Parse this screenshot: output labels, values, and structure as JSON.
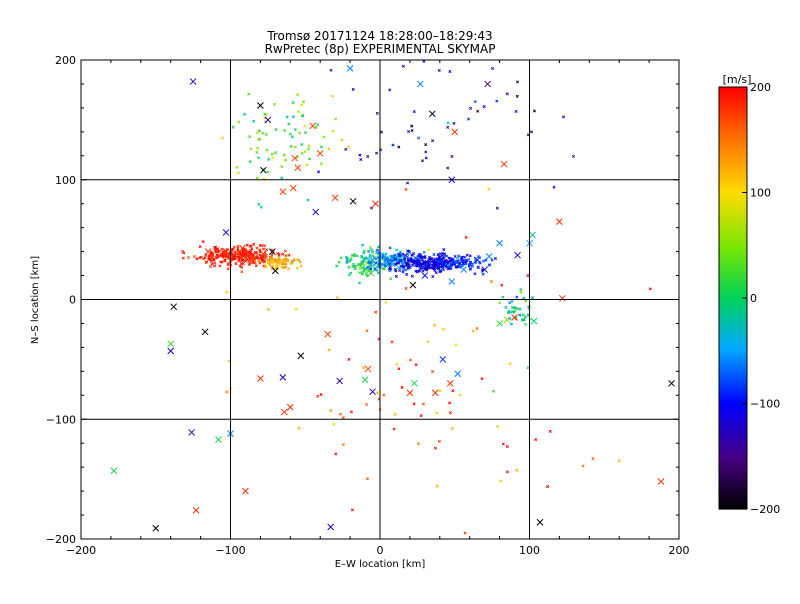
{
  "chart_data": {
    "type": "scatter",
    "title": "Tromsø 20171124 18:28:00–18:29:43",
    "subtitle": "RwPretec (8p) EXPERIMENTAL SKYMAP",
    "xlabel": "E–W location [km]",
    "ylabel": "N–S location [km]",
    "xlim": [
      -200,
      200
    ],
    "ylim": [
      -200,
      200
    ],
    "xticks": [
      -200,
      -100,
      0,
      100,
      200
    ],
    "yticks": [
      -200,
      -100,
      0,
      100,
      200
    ],
    "grid": true,
    "colorbar": {
      "label": "[m/s]",
      "range": [
        -200,
        200
      ],
      "ticks": [
        200,
        100,
        0,
        -100,
        -200
      ],
      "placement": "right"
    },
    "clusters": [
      {
        "name": "red-west-cluster",
        "cx": -95,
        "cy": 36,
        "sx": 14,
        "sy": 4,
        "n": 260,
        "v": 190,
        "vs": 12
      },
      {
        "name": "orange-west-cluster",
        "cx": -68,
        "cy": 31,
        "sx": 6,
        "sy": 3,
        "n": 70,
        "v": 120,
        "vs": 20
      },
      {
        "name": "green-center-cluster",
        "cx": -8,
        "cy": 30,
        "sx": 8,
        "sy": 6,
        "n": 90,
        "v": 10,
        "vs": 20
      },
      {
        "name": "cyan-center-cluster",
        "cx": 8,
        "cy": 33,
        "sx": 10,
        "sy": 4,
        "n": 140,
        "v": -55,
        "vs": 15
      },
      {
        "name": "blue-east-cluster",
        "cx": 35,
        "cy": 30,
        "sx": 14,
        "sy": 4,
        "n": 260,
        "v": -110,
        "vs": 15
      },
      {
        "name": "lightblue-east-cluster",
        "cx": 55,
        "cy": 30,
        "sx": 10,
        "sy": 3,
        "n": 60,
        "v": -80,
        "vs": 12
      },
      {
        "name": "green-ne-cluster",
        "cx": -65,
        "cy": 135,
        "sx": 18,
        "sy": 20,
        "n": 80,
        "v": 40,
        "vs": 35
      },
      {
        "name": "green-se-cluster",
        "cx": 92,
        "cy": -10,
        "sx": 6,
        "sy": 6,
        "n": 40,
        "v": 0,
        "vs": 40
      },
      {
        "name": "blue-north-scatter",
        "cx": 45,
        "cy": 150,
        "sx": 40,
        "sy": 35,
        "n": 60,
        "v": -130,
        "vs": 40
      },
      {
        "name": "red-south-scatter",
        "cx": 20,
        "cy": -70,
        "sx": 60,
        "sy": 55,
        "n": 90,
        "v": 150,
        "vs": 60
      }
    ],
    "x_markers": [
      {
        "x": -125,
        "y": 182,
        "v": -120
      },
      {
        "x": -80,
        "y": 162,
        "v": -200
      },
      {
        "x": -75,
        "y": 150,
        "v": -130
      },
      {
        "x": -78,
        "y": 108,
        "v": -200
      },
      {
        "x": -45,
        "y": 145,
        "v": 170
      },
      {
        "x": -55,
        "y": 110,
        "v": 170
      },
      {
        "x": -40,
        "y": 122,
        "v": 170
      },
      {
        "x": -30,
        "y": 85,
        "v": 170
      },
      {
        "x": -18,
        "y": 82,
        "v": -200
      },
      {
        "x": -3,
        "y": 80,
        "v": 190
      },
      {
        "x": -43,
        "y": 73,
        "v": -110
      },
      {
        "x": -58,
        "y": 93,
        "v": 170
      },
      {
        "x": -65,
        "y": 90,
        "v": 170
      },
      {
        "x": -57,
        "y": 118,
        "v": 170
      },
      {
        "x": -70,
        "y": 24,
        "v": -200
      },
      {
        "x": -72,
        "y": 40,
        "v": -200
      },
      {
        "x": -103,
        "y": 56,
        "v": -110
      },
      {
        "x": -103,
        "y": 40,
        "v": 180
      },
      {
        "x": -115,
        "y": 40,
        "v": 180
      },
      {
        "x": -87,
        "y": 36,
        "v": 180
      },
      {
        "x": -92,
        "y": 43,
        "v": 180
      },
      {
        "x": -78,
        "y": 38,
        "v": 180
      },
      {
        "x": -138,
        "y": -6,
        "v": -200
      },
      {
        "x": -117,
        "y": -27,
        "v": -200
      },
      {
        "x": -140,
        "y": -37,
        "v": 20
      },
      {
        "x": -140,
        "y": -43,
        "v": -120
      },
      {
        "x": -53,
        "y": -47,
        "v": -200
      },
      {
        "x": -35,
        "y": -29,
        "v": 170
      },
      {
        "x": -27,
        "y": -68,
        "v": -120
      },
      {
        "x": -8,
        "y": -58,
        "v": 170
      },
      {
        "x": -5,
        "y": -77,
        "v": -120
      },
      {
        "x": -10,
        "y": -67,
        "v": 10
      },
      {
        "x": -100,
        "y": -112,
        "v": -60
      },
      {
        "x": -108,
        "y": -117,
        "v": 10
      },
      {
        "x": -126,
        "y": -111,
        "v": -130
      },
      {
        "x": -178,
        "y": -143,
        "v": 10
      },
      {
        "x": -150,
        "y": -191,
        "v": -200
      },
      {
        "x": -123,
        "y": -176,
        "v": 180
      },
      {
        "x": -90,
        "y": -160,
        "v": 180
      },
      {
        "x": -64,
        "y": -94,
        "v": 180
      },
      {
        "x": -60,
        "y": -90,
        "v": 180
      },
      {
        "x": -80,
        "y": -66,
        "v": 180
      },
      {
        "x": -65,
        "y": -65,
        "v": -120
      },
      {
        "x": -33,
        "y": -190,
        "v": -130
      },
      {
        "x": 20,
        "y": -78,
        "v": 180
      },
      {
        "x": 23,
        "y": -70,
        "v": 10
      },
      {
        "x": 37,
        "y": -78,
        "v": 180
      },
      {
        "x": 47,
        "y": -70,
        "v": 180
      },
      {
        "x": 42,
        "y": -50,
        "v": -80
      },
      {
        "x": 52,
        "y": -62,
        "v": -60
      },
      {
        "x": 80,
        "y": -20,
        "v": 20
      },
      {
        "x": 85,
        "y": -17,
        "v": 50
      },
      {
        "x": 90,
        "y": -15,
        "v": 180
      },
      {
        "x": 103,
        "y": -18,
        "v": -10
      },
      {
        "x": 122,
        "y": 1,
        "v": 180
      },
      {
        "x": 107,
        "y": -186,
        "v": -200
      },
      {
        "x": 188,
        "y": -152,
        "v": 180
      },
      {
        "x": 195,
        "y": -70,
        "v": -200
      },
      {
        "x": 22,
        "y": 12,
        "v": -200
      },
      {
        "x": 30,
        "y": 20,
        "v": -110
      },
      {
        "x": 48,
        "y": 15,
        "v": -60
      },
      {
        "x": 65,
        "y": 33,
        "v": -90
      },
      {
        "x": 70,
        "y": 25,
        "v": -110
      },
      {
        "x": 73,
        "y": 36,
        "v": -60
      },
      {
        "x": 80,
        "y": 47,
        "v": -60
      },
      {
        "x": 92,
        "y": 37,
        "v": -120
      },
      {
        "x": 100,
        "y": 47,
        "v": -40
      },
      {
        "x": 102,
        "y": 54,
        "v": -10
      },
      {
        "x": 120,
        "y": 65,
        "v": 180
      },
      {
        "x": 83,
        "y": 113,
        "v": 180
      },
      {
        "x": 27,
        "y": 180,
        "v": -60
      },
      {
        "x": -20,
        "y": 193,
        "v": -60
      },
      {
        "x": 50,
        "y": 140,
        "v": 180
      },
      {
        "x": 72,
        "y": 180,
        "v": -150
      },
      {
        "x": 35,
        "y": 155,
        "v": -180
      },
      {
        "x": 25,
        "y": 30,
        "v": -110
      },
      {
        "x": 40,
        "y": 35,
        "v": -110
      },
      {
        "x": 56,
        "y": 25,
        "v": -60
      },
      {
        "x": -6,
        "y": 22,
        "v": 20
      },
      {
        "x": 8,
        "y": 30,
        "v": -40
      },
      {
        "x": 48,
        "y": 100,
        "v": -120
      }
    ]
  }
}
